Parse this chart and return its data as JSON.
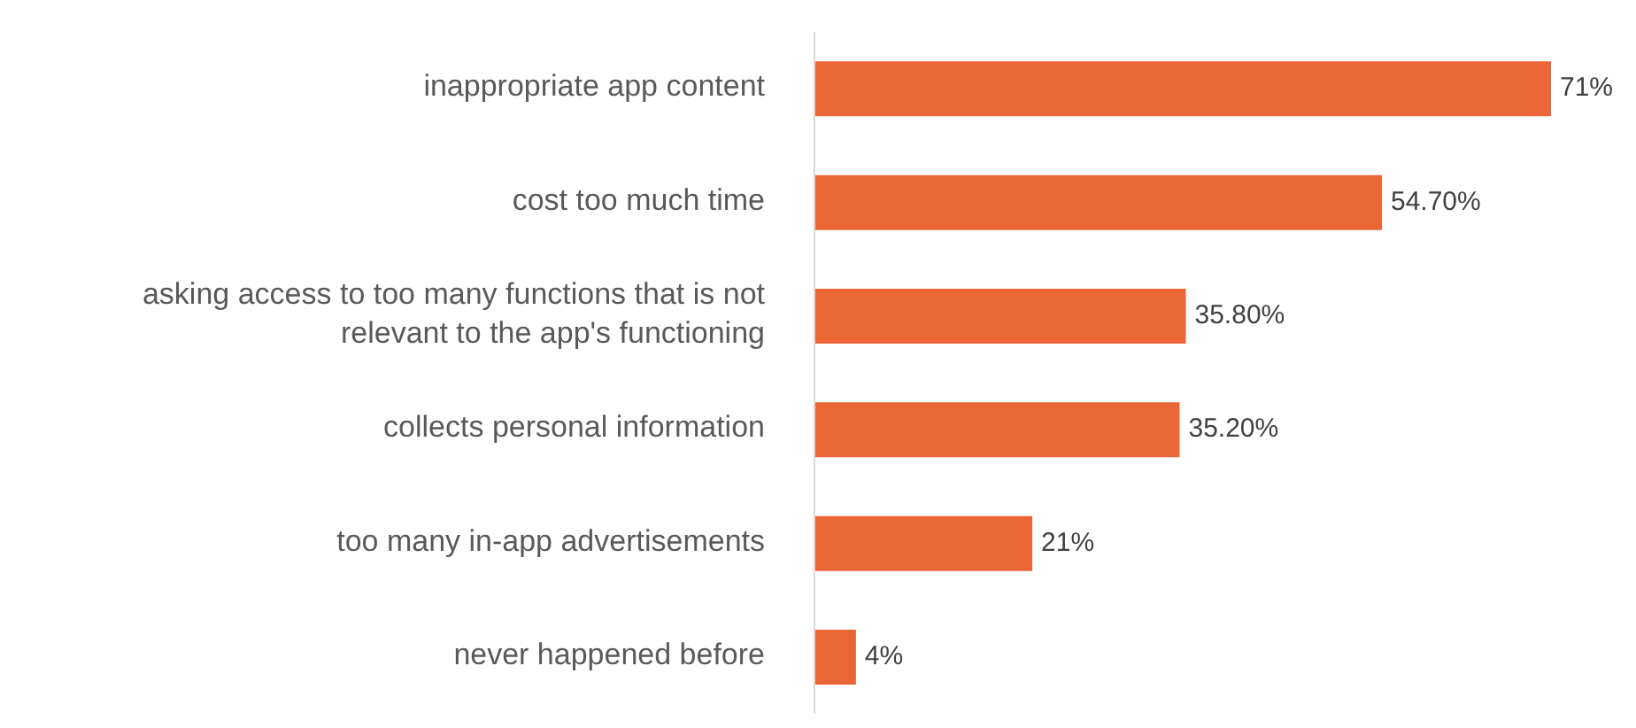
{
  "chart_data": {
    "type": "bar",
    "orientation": "horizontal",
    "categories": [
      "inappropriate app content",
      "cost too much time",
      "asking access to too many functions that is not relevant to the app's functioning",
      "collects personal information",
      "too many in-app advertisements",
      "never happened before"
    ],
    "series": [
      {
        "color": "#ea6634",
        "values": [
          71,
          54.7,
          35.8,
          35.2,
          21,
          4
        ],
        "value_labels": [
          "71%",
          "54.70%",
          "35.80%",
          "35.20%",
          "21%",
          "4%"
        ]
      }
    ],
    "grid": false,
    "legend": false
  }
}
